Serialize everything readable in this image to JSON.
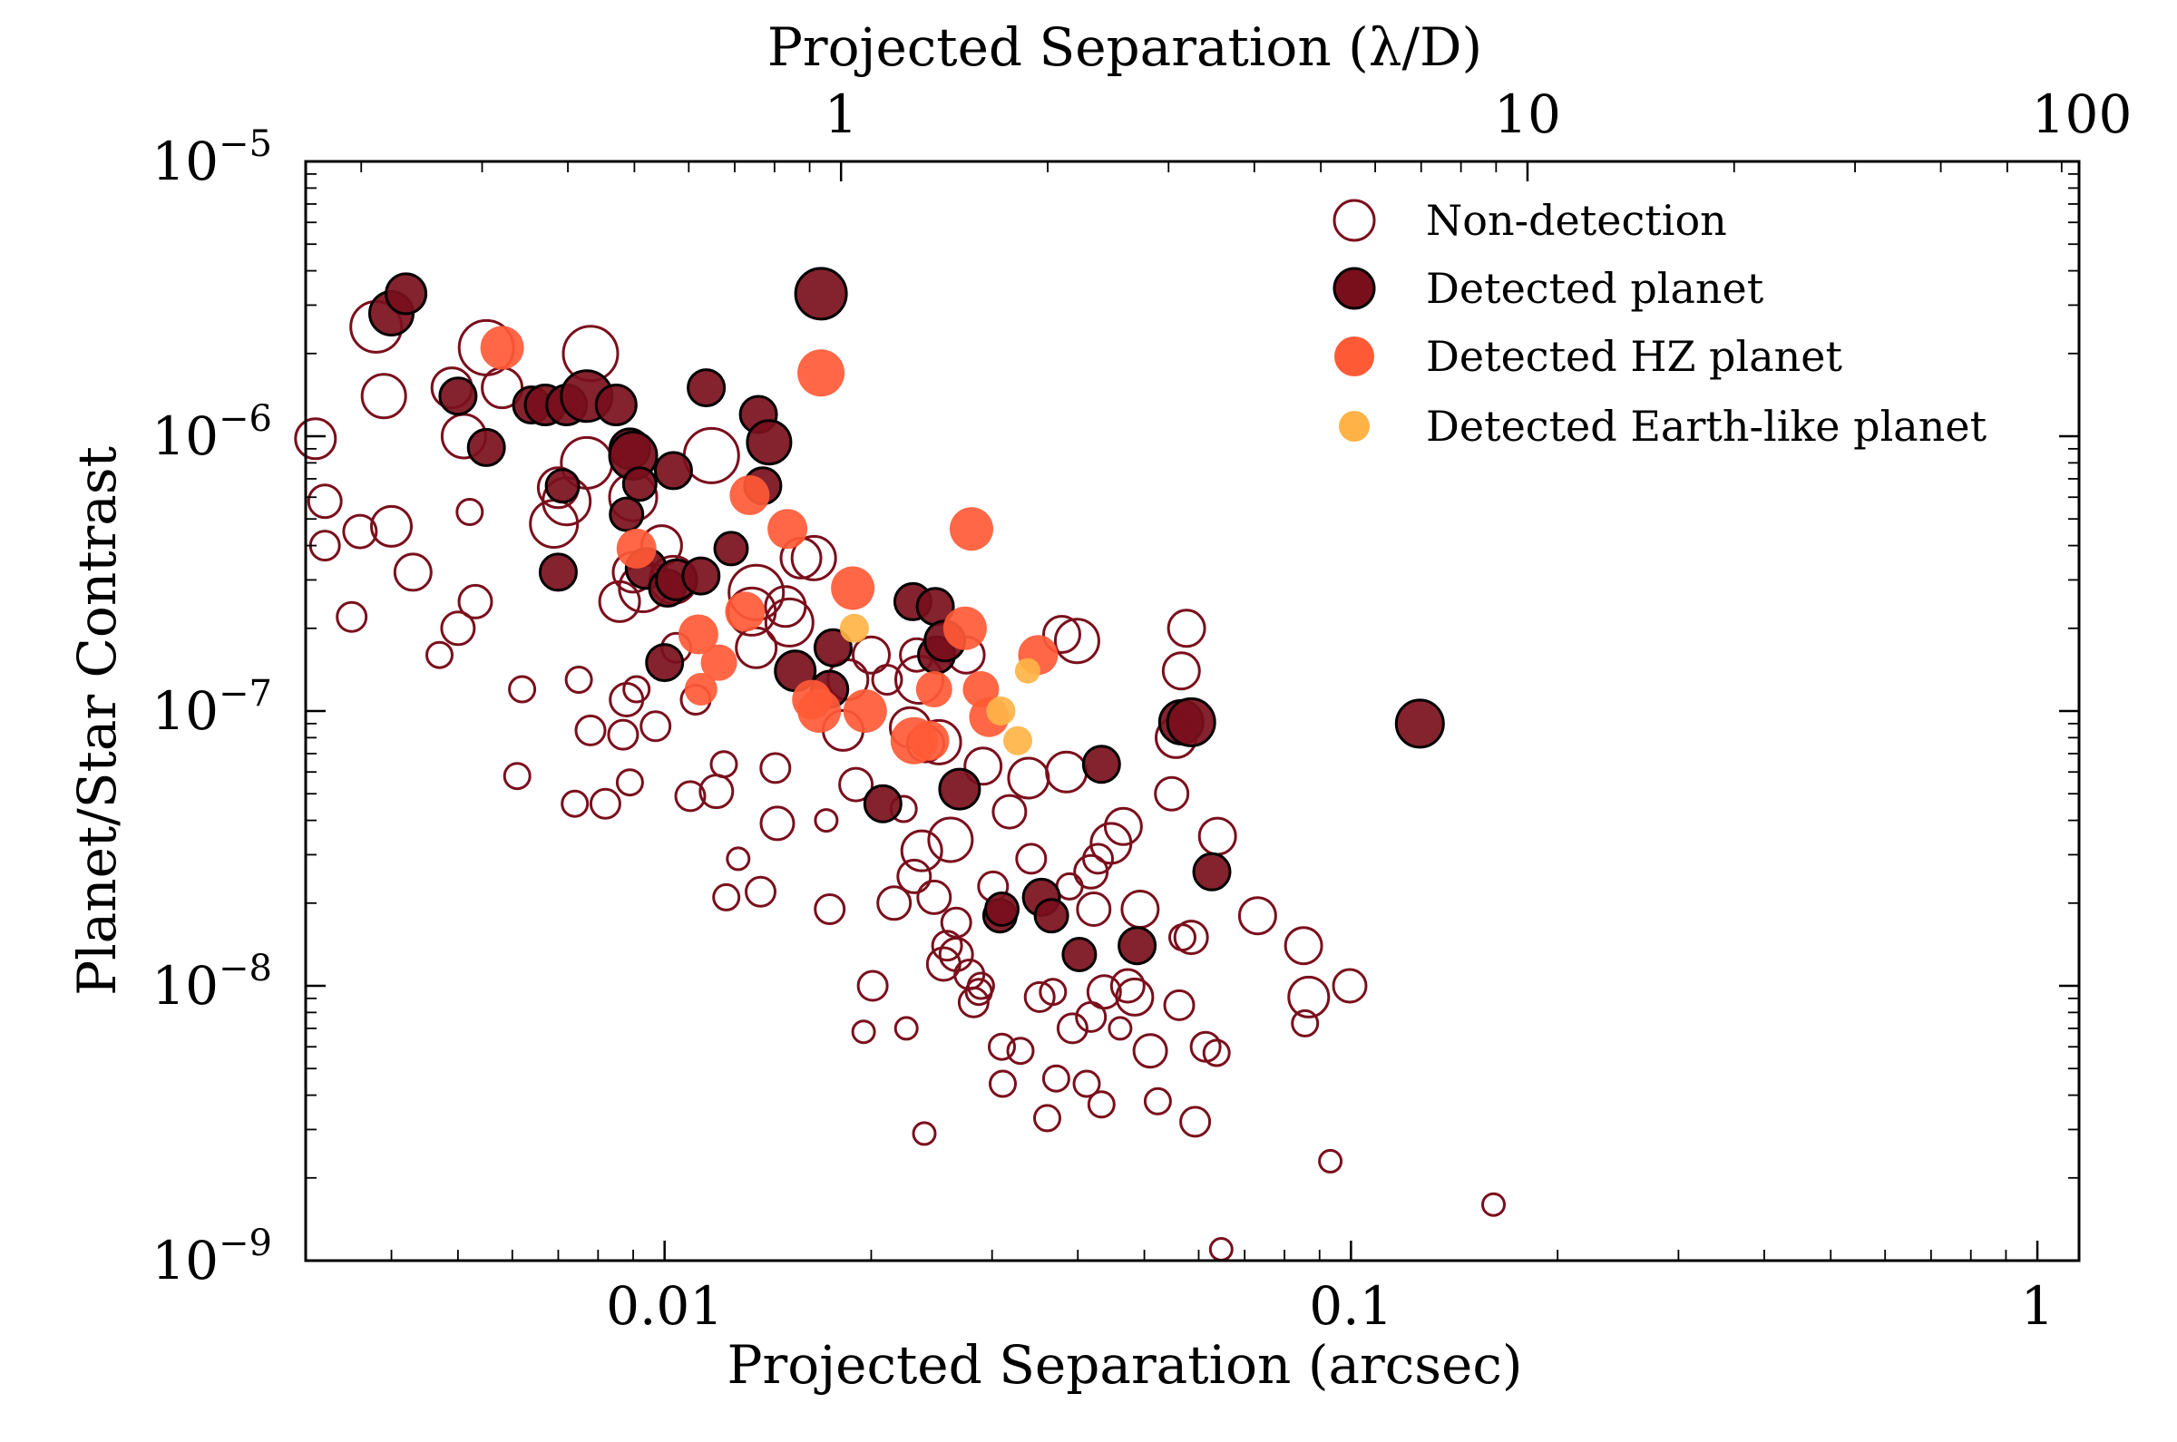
{
  "chart_data": {
    "type": "scatter",
    "xlabel": "Projected Separation (arcsec)",
    "x2label": "Projected Separation (λ/D)",
    "ylabel": "Planet/Star Contrast",
    "x_scale": "log",
    "y_scale": "log",
    "xlim": [
      0.003,
      1.15
    ],
    "ylim": [
      1e-09,
      1e-05
    ],
    "x2lim": [
      0.166,
      63.6
    ],
    "x_ticks": [
      {
        "v": 0.01,
        "label": "0.01"
      },
      {
        "v": 0.1,
        "label": "0.1"
      },
      {
        "v": 1,
        "label": "1"
      }
    ],
    "x2_ticks": [
      {
        "v": 1,
        "label": "1"
      },
      {
        "v": 10,
        "label": "10"
      },
      {
        "v": 100,
        "label": "100"
      }
    ],
    "y_ticks": [
      {
        "v": 1e-09,
        "base": "10",
        "exp": "−9"
      },
      {
        "v": 1e-08,
        "base": "10",
        "exp": "−8"
      },
      {
        "v": 1e-07,
        "base": "10",
        "exp": "−7"
      },
      {
        "v": 1e-06,
        "base": "10",
        "exp": "−6"
      },
      {
        "v": 1e-05,
        "base": "10",
        "exp": "−5"
      }
    ],
    "legend_position": "top-right",
    "colors": {
      "nondet": "#7a0f1c",
      "det": "#7a0f1c",
      "hz": "#ff5a36",
      "earth": "#ffb347"
    },
    "series": [
      {
        "name": "Non-detection",
        "style": "open",
        "points": [
          [
            0.0031,
            9.8e-07,
            22
          ],
          [
            0.0032,
            5.8e-07,
            18
          ],
          [
            0.0032,
            4e-07,
            16
          ],
          [
            0.0035,
            2.2e-07,
            16
          ],
          [
            0.0036,
            4.5e-07,
            18
          ],
          [
            0.0038,
            2.5e-06,
            28
          ],
          [
            0.0039,
            1.4e-06,
            24
          ],
          [
            0.004,
            4.7e-07,
            22
          ],
          [
            0.0043,
            3.2e-07,
            20
          ],
          [
            0.0047,
            1.6e-07,
            14
          ],
          [
            0.0049,
            1.5e-06,
            22
          ],
          [
            0.005,
            2e-07,
            18
          ],
          [
            0.0051,
            1e-06,
            24
          ],
          [
            0.0052,
            5.3e-07,
            14
          ],
          [
            0.0053,
            2.5e-07,
            18
          ],
          [
            0.0055,
            2.1e-06,
            30
          ],
          [
            0.0058,
            1.5e-06,
            22
          ],
          [
            0.0061,
            5.8e-08,
            14
          ],
          [
            0.0062,
            1.2e-07,
            14
          ],
          [
            0.0069,
            4.8e-07,
            26
          ],
          [
            0.007,
            6.5e-07,
            22
          ],
          [
            0.0072,
            5.8e-07,
            26
          ],
          [
            0.0074,
            4.6e-08,
            14
          ],
          [
            0.0075,
            1.3e-07,
            14
          ],
          [
            0.0077,
            8e-07,
            28
          ],
          [
            0.0078,
            2e-06,
            30
          ],
          [
            0.0078,
            8.5e-08,
            16
          ],
          [
            0.0082,
            4.6e-08,
            16
          ],
          [
            0.0086,
            2.5e-07,
            22
          ],
          [
            0.0087,
            8.2e-08,
            16
          ],
          [
            0.0088,
            1.1e-07,
            18
          ],
          [
            0.0089,
            5.5e-08,
            14
          ],
          [
            0.009,
            3.2e-07,
            22
          ],
          [
            0.009,
            6e-07,
            26
          ],
          [
            0.0091,
            1.2e-07,
            14
          ],
          [
            0.0093,
            2.8e-07,
            26
          ],
          [
            0.0097,
            8.8e-08,
            16
          ],
          [
            0.0099,
            4e-07,
            22
          ],
          [
            0.0103,
            3e-07,
            26
          ],
          [
            0.0104,
            1.7e-07,
            16
          ],
          [
            0.0109,
            4.9e-08,
            16
          ],
          [
            0.0111,
            1.1e-07,
            16
          ],
          [
            0.0117,
            8.5e-07,
            30
          ],
          [
            0.0119,
            5.1e-08,
            18
          ],
          [
            0.0122,
            6.4e-08,
            14
          ],
          [
            0.0123,
            2.1e-08,
            14
          ],
          [
            0.0128,
            2.9e-08,
            12
          ],
          [
            0.0134,
            2.3e-07,
            26
          ],
          [
            0.0136,
            2.7e-07,
            30
          ],
          [
            0.0136,
            1.7e-07,
            22
          ],
          [
            0.0138,
            2.2e-08,
            16
          ],
          [
            0.0145,
            6.2e-08,
            16
          ],
          [
            0.0146,
            3.9e-08,
            18
          ],
          [
            0.015,
            2.4e-07,
            22
          ],
          [
            0.0152,
            2.1e-07,
            26
          ],
          [
            0.0158,
            3.6e-07,
            22
          ],
          [
            0.0165,
            3.6e-07,
            24
          ],
          [
            0.0172,
            4e-08,
            12
          ],
          [
            0.0174,
            1.9e-08,
            16
          ],
          [
            0.0182,
            8.5e-08,
            22
          ],
          [
            0.0185,
            1.3e-07,
            22
          ],
          [
            0.019,
            5.4e-08,
            18
          ],
          [
            0.0195,
            6.8e-09,
            12
          ],
          [
            0.02,
            1.6e-07,
            20
          ],
          [
            0.0201,
            1e-08,
            16
          ],
          [
            0.0211,
            1.3e-07,
            16
          ],
          [
            0.0216,
            2e-08,
            18
          ],
          [
            0.0223,
            4.4e-08,
            14
          ],
          [
            0.0225,
            7e-09,
            12
          ],
          [
            0.0228,
            8.7e-08,
            22
          ],
          [
            0.0231,
            2.5e-08,
            18
          ],
          [
            0.0233,
            1.6e-07,
            18
          ],
          [
            0.0235,
            1.3e-07,
            26
          ],
          [
            0.0237,
            3.1e-08,
            22
          ],
          [
            0.0239,
            2.9e-09,
            12
          ],
          [
            0.024,
            7.6e-08,
            20
          ],
          [
            0.0247,
            2.1e-08,
            18
          ],
          [
            0.0251,
            7.7e-08,
            24
          ],
          [
            0.0255,
            1.2e-08,
            18
          ],
          [
            0.0258,
            1.4e-08,
            16
          ],
          [
            0.0261,
            3.4e-08,
            24
          ],
          [
            0.0266,
            1.7e-08,
            16
          ],
          [
            0.0266,
            1.3e-08,
            18
          ],
          [
            0.0275,
            1.6e-07,
            20
          ],
          [
            0.0278,
            1.1e-08,
            16
          ],
          [
            0.0282,
            8.7e-09,
            16
          ],
          [
            0.0287,
            9.5e-09,
            14
          ],
          [
            0.0289,
            1e-08,
            14
          ],
          [
            0.0291,
            6.3e-08,
            20
          ],
          [
            0.0301,
            2.3e-08,
            16
          ],
          [
            0.031,
            6e-09,
            14
          ],
          [
            0.0311,
            4.4e-09,
            14
          ],
          [
            0.0318,
            4.3e-08,
            18
          ],
          [
            0.033,
            5.8e-09,
            14
          ],
          [
            0.0339,
            5.7e-08,
            22
          ],
          [
            0.0342,
            2.9e-08,
            16
          ],
          [
            0.0352,
            9.1e-09,
            16
          ],
          [
            0.0361,
            3.3e-09,
            14
          ],
          [
            0.0368,
            9.5e-09,
            14
          ],
          [
            0.0372,
            4.6e-09,
            14
          ],
          [
            0.0379,
            1.9e-07,
            20
          ],
          [
            0.0385,
            6e-08,
            22
          ],
          [
            0.0389,
            2.3e-08,
            14
          ],
          [
            0.0393,
            7e-09,
            16
          ],
          [
            0.0399,
            1.8e-07,
            24
          ],
          [
            0.0412,
            4.4e-09,
            14
          ],
          [
            0.0418,
            7.7e-09,
            16
          ],
          [
            0.0418,
            2.6e-08,
            18
          ],
          [
            0.0422,
            1.9e-08,
            18
          ],
          [
            0.0428,
            2.9e-08,
            16
          ],
          [
            0.0433,
            3.7e-09,
            14
          ],
          [
            0.0437,
            9.5e-09,
            18
          ],
          [
            0.0447,
            3.3e-08,
            22
          ],
          [
            0.0461,
            7e-09,
            12
          ],
          [
            0.0466,
            3.8e-08,
            20
          ],
          [
            0.0473,
            1e-08,
            18
          ],
          [
            0.0484,
            9.1e-09,
            20
          ],
          [
            0.0493,
            1.9e-08,
            20
          ],
          [
            0.051,
            5.8e-09,
            18
          ],
          [
            0.0523,
            3.8e-09,
            14
          ],
          [
            0.0548,
            5e-08,
            18
          ],
          [
            0.0556,
            8e-08,
            22
          ],
          [
            0.0562,
            8.5e-09,
            16
          ],
          [
            0.0566,
            1.4e-07,
            20
          ],
          [
            0.0568,
            1.5e-08,
            14
          ],
          [
            0.0576,
            2e-07,
            20
          ],
          [
            0.0585,
            1.5e-08,
            18
          ],
          [
            0.0593,
            3.2e-09,
            16
          ],
          [
            0.0614,
            6e-09,
            16
          ],
          [
            0.0637,
            5.7e-09,
            14
          ],
          [
            0.0639,
            3.5e-08,
            20
          ],
          [
            0.0647,
            1.1e-09,
            12
          ],
          [
            0.0731,
            1.8e-08,
            20
          ],
          [
            0.0853,
            1.4e-08,
            20
          ],
          [
            0.0857,
            7.3e-09,
            14
          ],
          [
            0.0868,
            9.1e-09,
            22
          ],
          [
            0.0933,
            2.3e-09,
            12
          ],
          [
            0.0996,
            1e-08,
            18
          ],
          [
            0.1613,
            1.6e-09,
            12
          ]
        ]
      },
      {
        "name": "Detected planet",
        "style": "filled",
        "points": [
          [
            0.004,
            2.8e-06,
            24
          ],
          [
            0.0042,
            3.3e-06,
            22
          ],
          [
            0.005,
            1.4e-06,
            20
          ],
          [
            0.0055,
            9.1e-07,
            20
          ],
          [
            0.0064,
            1.3e-06,
            20
          ],
          [
            0.0067,
            1.3e-06,
            22
          ],
          [
            0.007,
            3.2e-07,
            20
          ],
          [
            0.0071,
            6.6e-07,
            18
          ],
          [
            0.0072,
            1.3e-06,
            22
          ],
          [
            0.0077,
            1.4e-06,
            28
          ],
          [
            0.0085,
            1.3e-06,
            22
          ],
          [
            0.0088,
            5.2e-07,
            18
          ],
          [
            0.0089,
            9e-07,
            22
          ],
          [
            0.009,
            8.5e-07,
            26
          ],
          [
            0.0092,
            6.7e-07,
            18
          ],
          [
            0.0094,
            3.3e-07,
            22
          ],
          [
            0.01,
            1.5e-07,
            20
          ],
          [
            0.0101,
            2.8e-07,
            20
          ],
          [
            0.0103,
            7.5e-07,
            20
          ],
          [
            0.0104,
            3e-07,
            22
          ],
          [
            0.0113,
            3.1e-07,
            20
          ],
          [
            0.0115,
            1.5e-06,
            20
          ],
          [
            0.0125,
            3.9e-07,
            18
          ],
          [
            0.0137,
            1.2e-06,
            20
          ],
          [
            0.0139,
            6.6e-07,
            20
          ],
          [
            0.0142,
            9.5e-07,
            24
          ],
          [
            0.0155,
            1.4e-07,
            22
          ],
          [
            0.0169,
            3.3e-06,
            28
          ],
          [
            0.0174,
            1.2e-07,
            20
          ],
          [
            0.0176,
            1.7e-07,
            20
          ],
          [
            0.0208,
            4.6e-08,
            20
          ],
          [
            0.023,
            2.5e-07,
            20
          ],
          [
            0.0248,
            2.4e-07,
            20
          ],
          [
            0.0249,
            1.6e-07,
            20
          ],
          [
            0.0256,
            1.8e-07,
            22
          ],
          [
            0.0269,
            5.2e-08,
            22
          ],
          [
            0.0308,
            1.8e-08,
            18
          ],
          [
            0.031,
            1.9e-08,
            18
          ],
          [
            0.0354,
            2.1e-08,
            20
          ],
          [
            0.0366,
            1.8e-08,
            18
          ],
          [
            0.0402,
            1.3e-08,
            18
          ],
          [
            0.0433,
            6.4e-08,
            20
          ],
          [
            0.0488,
            1.4e-08,
            20
          ],
          [
            0.0566,
            9.1e-08,
            24
          ],
          [
            0.0585,
            9.1e-08,
            26
          ],
          [
            0.0627,
            2.6e-08,
            20
          ],
          [
            0.126,
            9e-08,
            26
          ]
        ]
      },
      {
        "name": "Detected HZ planet",
        "style": "filled",
        "points": [
          [
            0.0058,
            2.1e-06,
            24
          ],
          [
            0.0091,
            3.9e-07,
            22
          ],
          [
            0.0112,
            1.9e-07,
            22
          ],
          [
            0.0113,
            1.2e-07,
            18
          ],
          [
            0.012,
            1.5e-07,
            20
          ],
          [
            0.0131,
            2.3e-07,
            22
          ],
          [
            0.0133,
            6.1e-07,
            22
          ],
          [
            0.0151,
            4.6e-07,
            22
          ],
          [
            0.0164,
            1.1e-07,
            22
          ],
          [
            0.0168,
            1e-07,
            24
          ],
          [
            0.0169,
            1.7e-06,
            26
          ],
          [
            0.0188,
            2.8e-07,
            24
          ],
          [
            0.0196,
            1e-07,
            24
          ],
          [
            0.0231,
            7.8e-08,
            26
          ],
          [
            0.0243,
            7.8e-08,
            22
          ],
          [
            0.0247,
            1.2e-07,
            20
          ],
          [
            0.0274,
            2e-07,
            24
          ],
          [
            0.028,
            4.6e-07,
            24
          ],
          [
            0.0289,
            1.2e-07,
            20
          ],
          [
            0.0297,
            9.5e-08,
            22
          ],
          [
            0.035,
            1.6e-07,
            22
          ]
        ]
      },
      {
        "name": "Detected Earth-like planet",
        "style": "filled",
        "points": [
          [
            0.0189,
            2e-07,
            16
          ],
          [
            0.0309,
            1e-07,
            16
          ],
          [
            0.0327,
            7.8e-08,
            16
          ],
          [
            0.0338,
            1.4e-07,
            14
          ]
        ]
      }
    ]
  }
}
